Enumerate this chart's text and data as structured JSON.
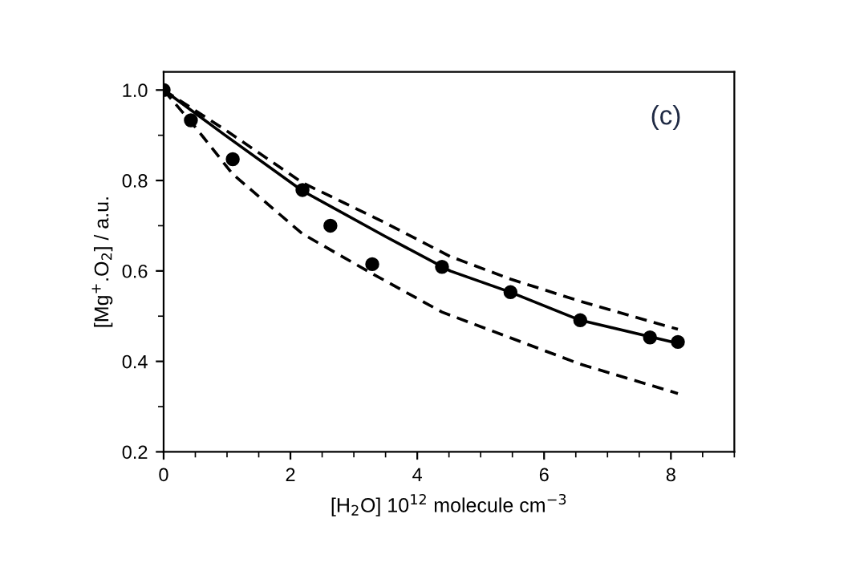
{
  "chart_data": {
    "type": "line",
    "xlabel": "[H$_{2}$O] 10$^{12}$ molecule cm$^{−3}$",
    "ylabel": "[Mg$^{+}$.O$_{2}$] / a.u.",
    "annotations": [
      "(c)"
    ],
    "xlim": [
      0,
      9
    ],
    "xticks": [
      0,
      2,
      4,
      6,
      8
    ],
    "ylim": [
      0.2,
      1.04
    ],
    "yticks": [
      0.2,
      0.4,
      0.6,
      0.8,
      {
        "value": 1,
        "label": "1.0"
      }
    ],
    "grid": false,
    "legend": false,
    "series": [
      {
        "color": "#000000",
        "line_style": "dashed",
        "marker": "none",
        "x": [
          0,
          0.97,
          2.19,
          3.5,
          4.52,
          5.47,
          6.57,
          8.11
        ],
        "values": [
          1.0,
          0.912,
          0.795,
          0.706,
          0.632,
          0.582,
          0.533,
          0.471
        ]
      },
      {
        "color": "#000000",
        "line_style": "solid",
        "marker": "none",
        "x": [
          0,
          0.97,
          2.19,
          3.5,
          4.52,
          5.47,
          6.57,
          8.11
        ],
        "values": [
          1.0,
          0.9,
          0.777,
          0.676,
          0.6,
          0.553,
          0.491,
          0.44
        ]
      },
      {
        "type": "line",
        "color": "#000000",
        "line_style": "dashed",
        "marker": "none",
        "x": [
          0,
          0.5,
          1.09,
          2.19,
          3.29,
          4.39,
          5.47,
          6.57,
          8.11
        ],
        "values": [
          1.0,
          0.918,
          0.814,
          0.682,
          0.594,
          0.509,
          0.452,
          0.394,
          0.329
        ]
      },
      {
        "type": "scatter",
        "color": "#000000",
        "marker": "circle",
        "x": [
          0,
          0.43,
          1.09,
          2.19,
          2.63,
          3.29,
          4.39,
          5.47,
          6.57,
          7.67,
          8.11
        ],
        "values": [
          1.0,
          0.933,
          0.847,
          0.779,
          0.7,
          0.615,
          0.609,
          0.553,
          0.491,
          0.453,
          0.443
        ]
      }
    ]
  }
}
